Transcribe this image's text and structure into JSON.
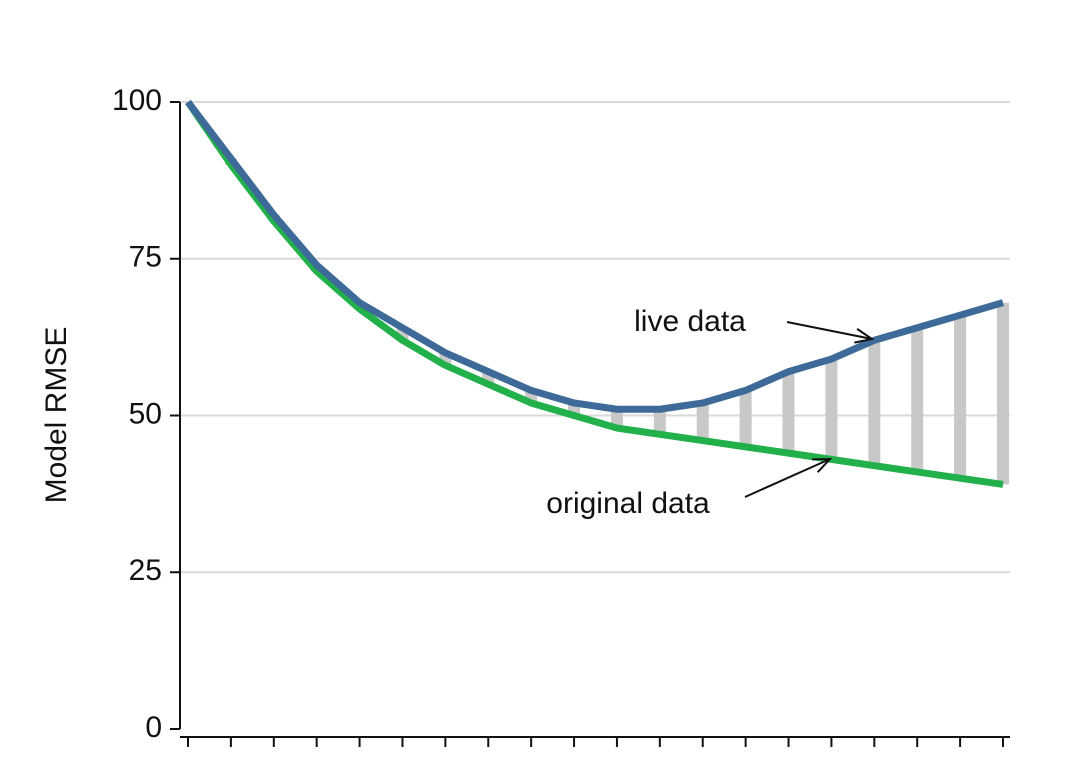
{
  "chart_data": {
    "type": "line",
    "ylabel": "Model RMSE",
    "categories": [
      null,
      null,
      null,
      null,
      null,
      null,
      null,
      null,
      null,
      null,
      null,
      null,
      null,
      null,
      null,
      null,
      null,
      null,
      null,
      null
    ],
    "series": [
      {
        "name": "live data",
        "color": "#3d6a99",
        "values": [
          100,
          91,
          82,
          74,
          68,
          64,
          60,
          57,
          54,
          52,
          51,
          51,
          52,
          54,
          57,
          59,
          62,
          64,
          66,
          68
        ]
      },
      {
        "name": "original data",
        "color": "#22b04a",
        "values": [
          100,
          90,
          81,
          73,
          67,
          62,
          58,
          55,
          52,
          50,
          48,
          47,
          46,
          45,
          44,
          43,
          42,
          41,
          40,
          39
        ]
      }
    ],
    "gap_color": "#c8c8c8",
    "ylim": [
      0,
      100
    ],
    "yticks": [
      0,
      25,
      50,
      75,
      100
    ],
    "grid": true
  }
}
